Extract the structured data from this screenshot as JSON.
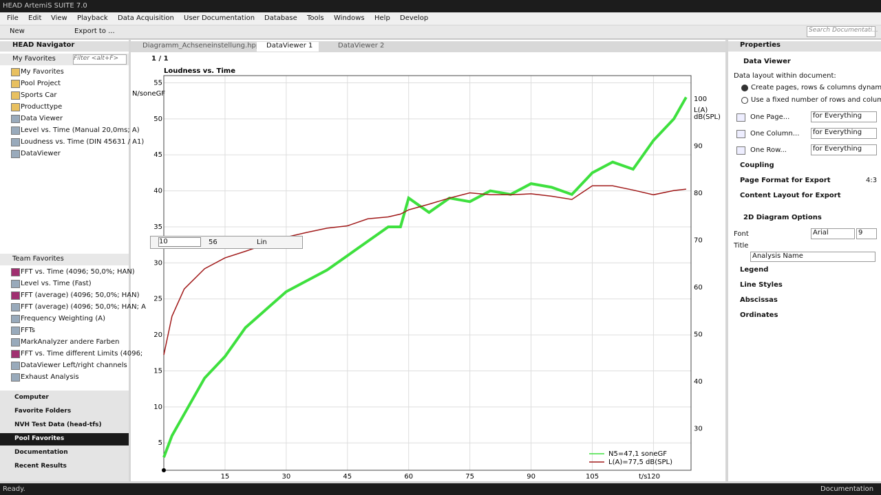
{
  "window": {
    "title": "HEAD ArtemiS SUITE 7.0"
  },
  "menu": [
    "File",
    "Edit",
    "View",
    "Playback",
    "Data Acquisition",
    "User Documentation",
    "Database",
    "Tools",
    "Windows",
    "Help",
    "Develop"
  ],
  "toolbar": {
    "buttons": [
      "New",
      "Export to ..."
    ],
    "search": "Search Documentati..."
  },
  "navigator": {
    "title": "HEAD Navigator",
    "section": "My Favorites",
    "filter": "Filter <alt+F>",
    "items": [
      "My Favorites",
      "Pool Project",
      "Sports Car",
      "Producttype",
      "Data Viewer",
      "Level vs. Time (Manual 20,0ms; A)",
      "Loudness vs. Time (DIN 45631 / A1)",
      "DataViewer"
    ],
    "team_section": "Team Favorites",
    "team_items": [
      "FFT vs. Time (4096; 50,0%; HAN)",
      "Level vs. Time (Fast)",
      "FFT (average) (4096; 50,0%; HAN)",
      "FFT (average) (4096; 50,0%; HAN; A",
      "Frequency Weighting (A)",
      "FFTs",
      "MarkAnalyzer andere Farben",
      "FFT vs. Time different Limits (4096;",
      "DataViewer Left/right channels",
      "Exhaust Analysis"
    ],
    "bottom": [
      "Computer",
      "Favorite Folders",
      "NVH Test Data (head-tfs)",
      "Pool Favorites",
      "Documentation",
      "Recent Results"
    ]
  },
  "tabs": [
    "Diagramm_Achseneinstellung.hpp",
    "DataViewer 1",
    "DataViewer 2"
  ],
  "pager": "1 / 1",
  "axis_widget": {
    "min": "10",
    "max": "56",
    "scale": "Lin"
  },
  "chart_data": {
    "type": "line",
    "title": "Loudness vs. Time",
    "ylabel": "N/soneGF",
    "y2label": [
      "L(A)",
      "dB(SPL)"
    ],
    "xlabel": "t/s",
    "xlim": [
      0,
      129.2
    ],
    "xticks": [
      15,
      30,
      45,
      60,
      75,
      90,
      105,
      120
    ],
    "ylim": [
      1.2,
      56
    ],
    "yticks": [
      5,
      10,
      15,
      20,
      25,
      30,
      35,
      40,
      45,
      50,
      55
    ],
    "y2lim": [
      21.2,
      105
    ],
    "y2ticks": [
      30,
      40,
      50,
      60,
      70,
      80,
      90,
      100
    ],
    "grid": true,
    "legend": "lower right",
    "x": [
      0,
      2,
      5,
      10,
      15,
      20,
      25,
      30,
      35,
      40,
      45,
      50,
      55,
      58,
      60,
      65,
      70,
      75,
      80,
      85,
      90,
      95,
      100,
      105,
      110,
      115,
      120,
      125,
      128
    ],
    "series": [
      {
        "name": "N5=47,1 soneGF",
        "color": "#3ee03e",
        "values": [
          3,
          6,
          9,
          14,
          17,
          21,
          23.5,
          26,
          27.5,
          29,
          31,
          33,
          35,
          35,
          39,
          37,
          39,
          38.5,
          40,
          39.5,
          41,
          40.5,
          39.5,
          42.5,
          44,
          43,
          47,
          50,
          53
        ]
      },
      {
        "name": "L(A)=77,5 dB(SPL)",
        "color": "#a01818",
        "axis": "y2",
        "values": [
          45.7,
          53.9,
          59.7,
          64,
          66.3,
          67.7,
          69.2,
          70.7,
          71.7,
          72.6,
          73.1,
          74.6,
          75,
          75.6,
          76.5,
          77.7,
          79,
          80.1,
          79.7,
          79.7,
          79.9,
          79.4,
          78.7,
          81.6,
          81.6,
          80.7,
          79.7,
          80.6,
          80.9
        ]
      }
    ]
  },
  "properties": {
    "title": "Properties",
    "section": "Data Viewer",
    "layout_label": "Data layout within document:",
    "layout_options": [
      "Create pages, rows & columns dynamically",
      "Use a fixed number of rows and columns"
    ],
    "views": [
      {
        "label": "One Page...",
        "value": "for Everything"
      },
      {
        "label": "One Column...",
        "value": "for Everything"
      },
      {
        "label": "One Row...",
        "value": "for Everything"
      }
    ],
    "groups": [
      "Coupling",
      "Page Format for Export",
      "Content Layout for Export"
    ],
    "page_format_ratio": "4:3",
    "diagram_section": "2D Diagram Options",
    "font_label": "Font",
    "font": "Arial",
    "font_size": 9,
    "title_label": "Title",
    "title_value": "Analysis Name",
    "diagram_groups": [
      "Legend",
      "Line Styles",
      "Abscissas",
      "Ordinates"
    ]
  },
  "status": {
    "text": "Ready.",
    "right": "Documentation"
  }
}
